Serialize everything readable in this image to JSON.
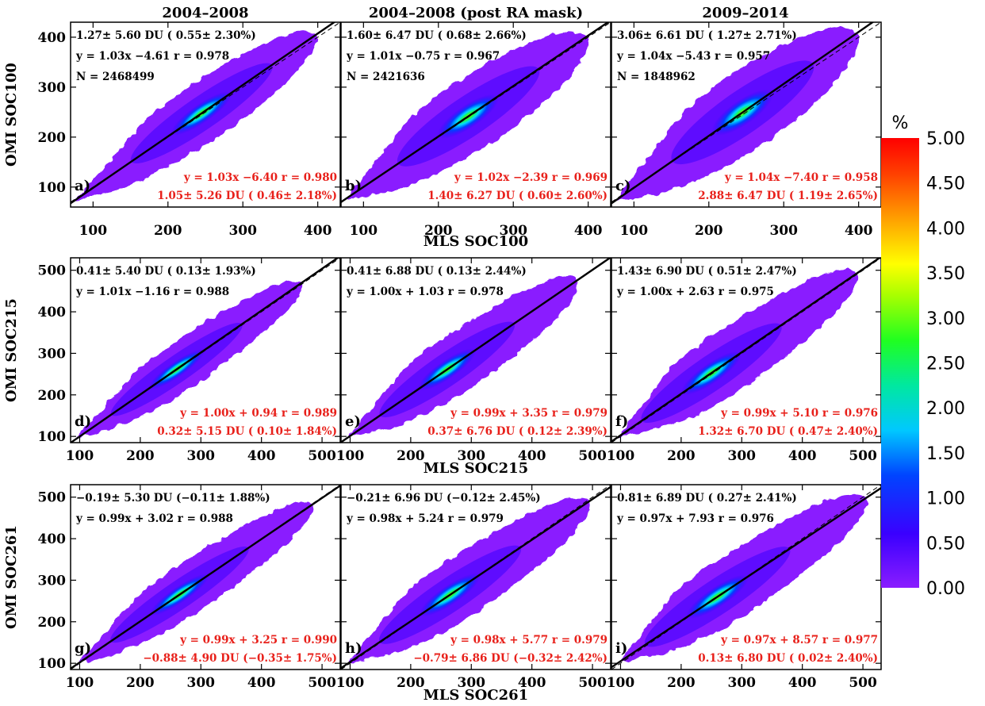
{
  "colors": {
    "annotation_black": "#000000",
    "annotation_red": "#e8201a",
    "scatter_base": "#8a1dff"
  },
  "column_titles": [
    "2004–2008",
    "2004–2008 (post RA mask)",
    "2009–2014"
  ],
  "colorbar": {
    "unit": "%",
    "min": 0.0,
    "max": 5.0,
    "colormap": "rainbow",
    "ticks": [
      "0.00",
      "0.50",
      "1.00",
      "1.50",
      "2.00",
      "2.50",
      "3.00",
      "3.50",
      "4.00",
      "4.50",
      "5.00"
    ]
  },
  "chart_data": [
    {
      "type": "scatter-density",
      "panel": "a)",
      "row": 0,
      "col": 0,
      "xlabel": "MLS SOC100",
      "ylabel": "OMI SOC100",
      "xlim": [
        70,
        430
      ],
      "ylim": [
        60,
        430
      ],
      "xticks": [
        "100",
        "200",
        "300",
        "400"
      ],
      "yticks": [
        "100",
        "200",
        "300",
        "400"
      ],
      "black": [
        "1.27± 5.60 DU ( 0.55± 2.30%)",
        "y = 1.03x −4.61 r = 0.978",
        "N =  2468499"
      ],
      "red": [
        "y = 1.03x −6.40 r = 0.980",
        "1.05± 5.26 DU ( 0.46± 2.18%)"
      ],
      "fit": {
        "slope": 1.03,
        "intercept": -4.61
      },
      "center": 245,
      "extent": [
        75,
        410
      ],
      "core_width": 40
    },
    {
      "type": "scatter-density",
      "panel": "b)",
      "row": 0,
      "col": 1,
      "xlabel": "",
      "ylabel": "",
      "xlim": [
        70,
        430
      ],
      "ylim": [
        60,
        430
      ],
      "xticks": [
        "100",
        "200",
        "300",
        "400"
      ],
      "yticks": [],
      "black": [
        "1.60± 6.47 DU ( 0.68± 2.66%)",
        "y = 1.01x −0.75 r = 0.967",
        "N =  2421636"
      ],
      "red": [
        "y = 1.02x −2.39 r = 0.969",
        "1.40± 6.27 DU ( 0.60± 2.60%)"
      ],
      "fit": {
        "slope": 1.01,
        "intercept": -0.75
      },
      "center": 240,
      "extent": [
        75,
        410
      ],
      "core_width": 48
    },
    {
      "type": "scatter-density",
      "panel": "c)",
      "row": 0,
      "col": 2,
      "xlabel": "",
      "ylabel": "",
      "xlim": [
        70,
        430
      ],
      "ylim": [
        60,
        430
      ],
      "xticks": [
        "100",
        "200",
        "300",
        "400"
      ],
      "yticks": [],
      "black": [
        "3.06± 6.61 DU ( 1.27± 2.71%)",
        "y = 1.04x −5.43 r = 0.957",
        "N =  1848962"
      ],
      "red": [
        "y = 1.04x −7.40 r = 0.958",
        "2.88± 6.47 DU ( 1.19± 2.65%)"
      ],
      "fit": {
        "slope": 1.04,
        "intercept": -5.43
      },
      "center": 245,
      "extent": [
        75,
        410
      ],
      "core_width": 52
    },
    {
      "type": "scatter-density",
      "panel": "d)",
      "row": 1,
      "col": 0,
      "xlabel": "MLS SOC215",
      "ylabel": "OMI SOC215",
      "xlim": [
        85,
        530
      ],
      "ylim": [
        85,
        530
      ],
      "xticks": [
        "100",
        "200",
        "300",
        "400",
        "500"
      ],
      "yticks": [
        "100",
        "200",
        "300",
        "400",
        "500"
      ],
      "black": [
        "0.41± 5.40 DU ( 0.13± 1.93%)",
        "y = 1.01x −1.16 r = 0.988"
      ],
      "red": [
        "y = 1.00x + 0.94 r = 0.989",
        "0.32± 5.15 DU ( 0.10± 1.84%)"
      ],
      "fit": {
        "slope": 1.01,
        "intercept": -1.16
      },
      "center": 260,
      "extent": [
        95,
        480
      ],
      "core_width": 40
    },
    {
      "type": "scatter-density",
      "panel": "e)",
      "row": 1,
      "col": 1,
      "xlabel": "",
      "ylabel": "",
      "xlim": [
        85,
        530
      ],
      "ylim": [
        85,
        530
      ],
      "xticks": [
        "100",
        "200",
        "300",
        "400",
        "500"
      ],
      "yticks": [],
      "black": [
        "0.41± 6.88 DU ( 0.13± 2.44%)",
        "y = 1.00x + 1.03 r = 0.978"
      ],
      "red": [
        "y = 0.99x + 3.35 r = 0.979",
        "0.37± 6.76 DU ( 0.12± 2.39%)"
      ],
      "fit": {
        "slope": 1.0,
        "intercept": 1.03
      },
      "center": 260,
      "extent": [
        95,
        490
      ],
      "core_width": 48
    },
    {
      "type": "scatter-density",
      "panel": "f)",
      "row": 1,
      "col": 2,
      "xlabel": "",
      "ylabel": "",
      "xlim": [
        85,
        530
      ],
      "ylim": [
        85,
        530
      ],
      "xticks": [
        "100",
        "200",
        "300",
        "400",
        "500"
      ],
      "yticks": [],
      "black": [
        "1.43± 6.90 DU ( 0.51± 2.47%)",
        "y = 1.00x + 2.63 r = 0.975"
      ],
      "red": [
        "y = 0.99x + 5.10 r = 0.976",
        "1.32± 6.70 DU ( 0.47± 2.40%)"
      ],
      "fit": {
        "slope": 1.0,
        "intercept": 2.63
      },
      "center": 250,
      "extent": [
        95,
        505
      ],
      "core_width": 52
    },
    {
      "type": "scatter-density",
      "panel": "g)",
      "row": 2,
      "col": 0,
      "xlabel": "MLS SOC261",
      "ylabel": "OMI SOC261",
      "xlim": [
        85,
        530
      ],
      "ylim": [
        85,
        530
      ],
      "xticks": [
        "100",
        "200",
        "300",
        "400",
        "500"
      ],
      "yticks": [
        "100",
        "200",
        "300",
        "400",
        "500"
      ],
      "black": [
        "−0.19± 5.30 DU (−0.11± 1.88%)",
        "y = 0.99x + 3.02 r = 0.988"
      ],
      "red": [
        "y = 0.99x + 3.25 r = 0.990",
        "−0.88± 4.90 DU (−0.35± 1.75%)"
      ],
      "fit": {
        "slope": 0.99,
        "intercept": 3.02
      },
      "center": 265,
      "extent": [
        95,
        500
      ],
      "core_width": 42
    },
    {
      "type": "scatter-density",
      "panel": "h)",
      "row": 2,
      "col": 1,
      "xlabel": "",
      "ylabel": "",
      "xlim": [
        85,
        530
      ],
      "ylim": [
        85,
        530
      ],
      "xticks": [
        "100",
        "200",
        "300",
        "400",
        "500"
      ],
      "yticks": [],
      "black": [
        "−0.21± 6.96 DU (−0.12± 2.45%)",
        "y = 0.98x + 5.24 r = 0.979"
      ],
      "red": [
        "y = 0.98x + 5.77 r = 0.979",
        "−0.79± 6.86 DU (−0.32± 2.42%)"
      ],
      "fit": {
        "slope": 0.98,
        "intercept": 5.24
      },
      "center": 265,
      "extent": [
        95,
        510
      ],
      "core_width": 50
    },
    {
      "type": "scatter-density",
      "panel": "i)",
      "row": 2,
      "col": 2,
      "xlabel": "",
      "ylabel": "",
      "xlim": [
        85,
        530
      ],
      "ylim": [
        85,
        530
      ],
      "xticks": [
        "100",
        "200",
        "300",
        "400",
        "500"
      ],
      "yticks": [],
      "black": [
        "0.81± 6.89 DU ( 0.27± 2.41%)",
        "y = 0.97x + 7.93 r = 0.976"
      ],
      "red": [
        "y = 0.97x + 8.57 r = 0.977",
        "0.13± 6.80 DU ( 0.02± 2.40%)"
      ],
      "fit": {
        "slope": 0.97,
        "intercept": 7.93
      },
      "center": 260,
      "extent": [
        95,
        520
      ],
      "core_width": 52
    }
  ]
}
